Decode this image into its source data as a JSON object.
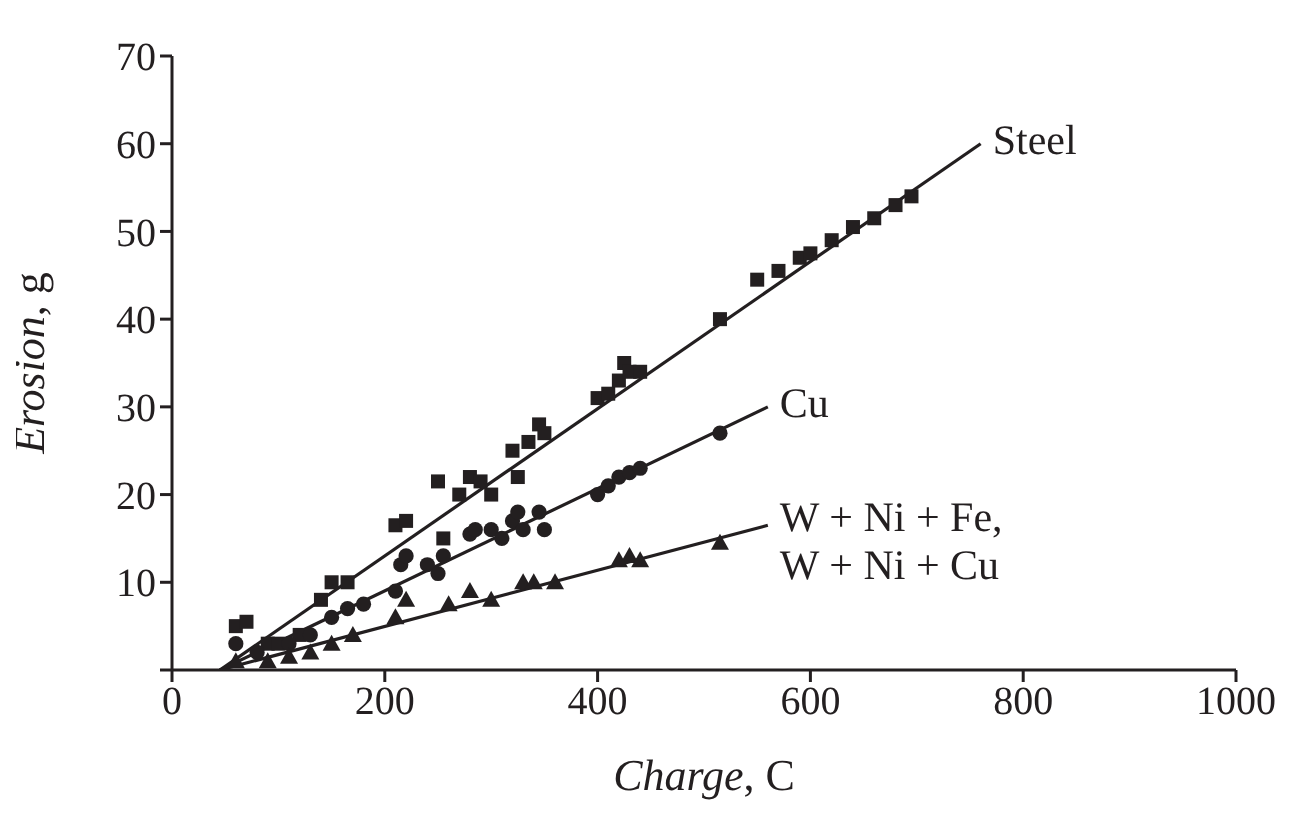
{
  "chart_data": {
    "type": "scatter",
    "xlabel": "Charge, C",
    "ylabel": "Erosion, g",
    "xlim": [
      0,
      1000
    ],
    "xticks": [
      0,
      200,
      400,
      600,
      800,
      1000
    ],
    "ylim": [
      0,
      70
    ],
    "yticks": [
      {
        "value": 0,
        "label": null
      },
      10,
      20,
      30,
      40,
      50,
      60,
      70
    ],
    "grid": false,
    "legend": false,
    "series": [
      {
        "marker": "square",
        "color": "#231f20",
        "x": [
          60,
          70,
          90,
          100,
          120,
          140,
          150,
          165,
          210,
          220,
          250,
          255,
          270,
          280,
          290,
          300,
          320,
          325,
          335,
          345,
          350,
          400,
          410,
          420,
          425,
          430,
          440,
          515,
          550,
          570,
          590,
          600,
          620,
          640,
          660,
          680,
          695
        ],
        "values": [
          5,
          5.5,
          3,
          3,
          4,
          8,
          10,
          10,
          16.5,
          17,
          21.5,
          15,
          20,
          22,
          21.5,
          20,
          25,
          22,
          26,
          28,
          27,
          31,
          31.5,
          33,
          35,
          34,
          34,
          40,
          44.5,
          45.5,
          47,
          47.5,
          49,
          50.5,
          51.5,
          53,
          54
        ]
      },
      {
        "marker": "circle",
        "color": "#231f20",
        "x": [
          60,
          80,
          110,
          130,
          150,
          165,
          180,
          210,
          215,
          220,
          240,
          250,
          255,
          280,
          285,
          300,
          310,
          320,
          325,
          330,
          345,
          350,
          400,
          410,
          420,
          430,
          440,
          515
        ],
        "values": [
          3,
          2,
          3,
          4,
          6,
          7,
          7.5,
          9,
          12,
          13,
          12,
          11,
          13,
          15.5,
          16,
          16,
          15,
          17,
          18,
          16,
          18,
          16,
          20,
          21,
          22,
          22.5,
          23,
          27
        ]
      },
      {
        "marker": "triangle",
        "color": "#231f20",
        "x": [
          60,
          90,
          110,
          130,
          150,
          170,
          210,
          220,
          260,
          280,
          300,
          330,
          340,
          360,
          420,
          430,
          440,
          515
        ],
        "values": [
          1,
          1,
          1.5,
          2,
          3,
          4,
          6,
          8,
          7.5,
          9,
          8,
          10,
          10,
          10,
          12.5,
          13,
          12.5,
          14.5
        ]
      },
      {
        "name": "Steel",
        "type": "line",
        "marker": "none",
        "line_style": "solid",
        "color": "#231f20",
        "x": [
          45,
          760
        ],
        "values": [
          0,
          60
        ]
      },
      {
        "name": "Cu",
        "type": "line",
        "marker": "none",
        "line_style": "solid",
        "color": "#231f20",
        "x": [
          45,
          560
        ],
        "values": [
          0,
          30
        ]
      },
      {
        "name": "W + Ni + Fe, W + Ni + Cu",
        "type": "line",
        "marker": "none",
        "line_style": "solid",
        "color": "#231f20",
        "x": [
          45,
          560
        ],
        "values": [
          0,
          16.5
        ]
      }
    ]
  }
}
